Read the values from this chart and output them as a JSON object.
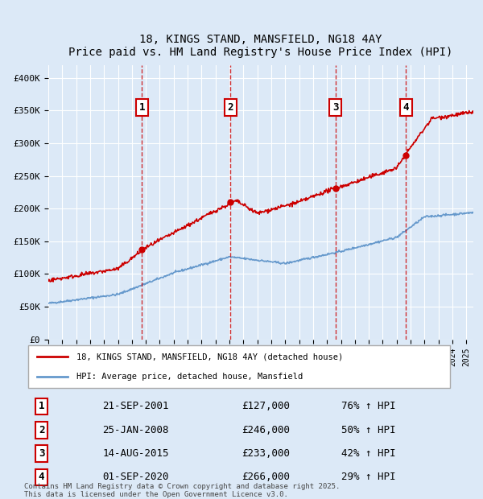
{
  "title": "18, KINGS STAND, MANSFIELD, NG18 4AY",
  "subtitle": "Price paid vs. HM Land Registry's House Price Index (HPI)",
  "background_color": "#dce9f7",
  "plot_bg_color": "#dce9f7",
  "red_line_color": "#cc0000",
  "blue_line_color": "#6699cc",
  "ylim": [
    0,
    420000
  ],
  "yticks": [
    0,
    50000,
    100000,
    150000,
    200000,
    250000,
    300000,
    350000,
    400000
  ],
  "ytick_labels": [
    "£0",
    "£50K",
    "£100K",
    "£150K",
    "£200K",
    "£250K",
    "£300K",
    "£350K",
    "£400K"
  ],
  "legend1_label": "18, KINGS STAND, MANSFIELD, NG18 4AY (detached house)",
  "legend2_label": "HPI: Average price, detached house, Mansfield",
  "transactions": [
    {
      "num": 1,
      "date": "21-SEP-2001",
      "price": 127000,
      "pct": "76%",
      "dir": "↑",
      "year": 2001.72
    },
    {
      "num": 2,
      "date": "25-JAN-2008",
      "price": 246000,
      "pct": "50%",
      "dir": "↑",
      "year": 2008.07
    },
    {
      "num": 3,
      "date": "14-AUG-2015",
      "price": 233000,
      "pct": "42%",
      "dir": "↑",
      "year": 2015.62
    },
    {
      "num": 4,
      "date": "01-SEP-2020",
      "price": 266000,
      "pct": "29%",
      "dir": "↑",
      "year": 2020.67
    }
  ],
  "footer": "Contains HM Land Registry data © Crown copyright and database right 2025.\nThis data is licensed under the Open Government Licence v3.0.",
  "xmin": 1995,
  "xmax": 2025.5
}
